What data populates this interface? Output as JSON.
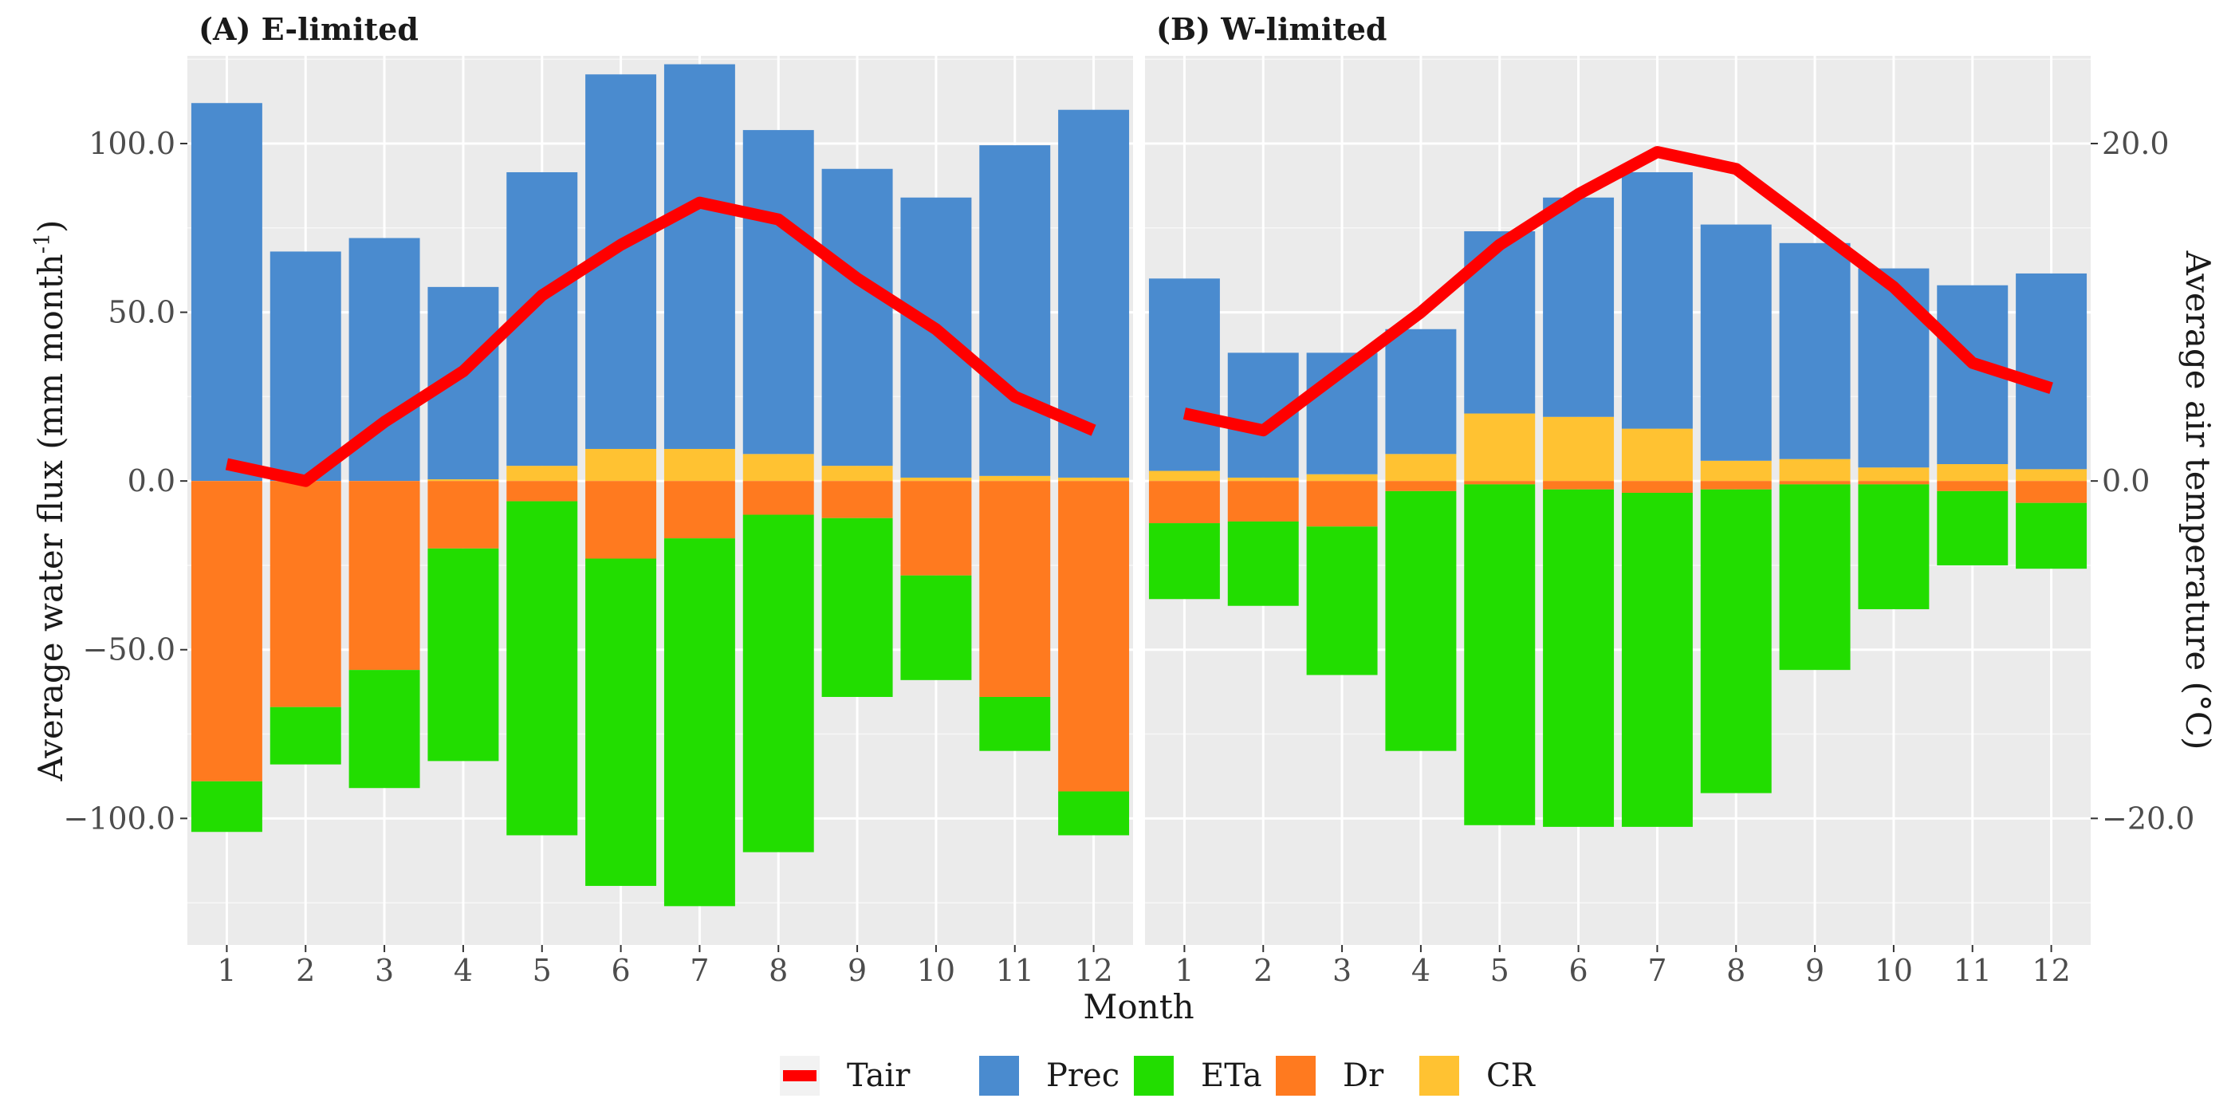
{
  "chart_data": {
    "type": "bar",
    "stacking": "diverging",
    "xlabel": "Month",
    "ylabel": "Average water flux (mm month",
    "ylabel_superscript": "-1",
    "ylabel_suffix": ")",
    "y2label": "Average air temperature (°C)",
    "ylim": [
      -137.5,
      126
    ],
    "yticks": [
      -100,
      -50,
      0,
      50,
      100
    ],
    "ytick_labels": [
      "−100.0",
      "−50.0",
      "0.0",
      "50.0",
      "100.0"
    ],
    "y2_scale": 0.2,
    "y2ticks": [
      -20,
      0,
      20
    ],
    "y2tick_labels": [
      "−20.0",
      "0.0",
      "20.0"
    ],
    "categories": [
      "1",
      "2",
      "3",
      "4",
      "5",
      "6",
      "7",
      "8",
      "9",
      "10",
      "11",
      "12"
    ],
    "colors": {
      "Prec": "#4a8bcf",
      "ETa": "#22dd00",
      "Dr": "#ff7a1f",
      "CR": "#ffc232",
      "Tair": "#ff0000"
    },
    "legend": [
      "Tair",
      "Prec",
      "ETa",
      "Dr",
      "CR"
    ],
    "panels": [
      {
        "title": "(A) E-limited",
        "series": [
          {
            "name": "Prec",
            "values": [
              112,
              68,
              72,
              57,
              87,
              111,
              114,
              96,
              88,
              83,
              98,
              109
            ]
          },
          {
            "name": "CR",
            "values": [
              0,
              0,
              0,
              0.5,
              4.5,
              9.5,
              9.5,
              8,
              4.5,
              1,
              1.5,
              1
            ]
          },
          {
            "name": "Dr",
            "values": [
              -89,
              -67,
              -56,
              -20,
              -6,
              -23,
              -17,
              -10,
              -11,
              -28,
              -64,
              -92
            ]
          },
          {
            "name": "ETa",
            "values": [
              -15,
              -17,
              -35,
              -63,
              -99,
              -97,
              -109,
              -100,
              -53,
              -31,
              -16,
              -13
            ]
          },
          {
            "name": "Tair",
            "values": [
              1,
              0,
              3.5,
              6.5,
              11,
              14,
              16.5,
              15.5,
              12,
              9,
              5,
              3
            ]
          }
        ]
      },
      {
        "title": "(B) W-limited",
        "series": [
          {
            "name": "Prec",
            "values": [
              57,
              37,
              36,
              37,
              54,
              65,
              76,
              70,
              64,
              59,
              53,
              58
            ]
          },
          {
            "name": "CR",
            "values": [
              3,
              1,
              2,
              8,
              20,
              19,
              15.5,
              6,
              6.5,
              4,
              5,
              3.5
            ]
          },
          {
            "name": "Dr",
            "values": [
              -12.5,
              -12,
              -13.5,
              -3,
              -1,
              -2.5,
              -3.5,
              -2.5,
              -1,
              -1,
              -3,
              -6.5
            ]
          },
          {
            "name": "ETa",
            "values": [
              -22.5,
              -25,
              -44,
              -77,
              -101,
              -100,
              -99,
              -90,
              -55,
              -37,
              -22,
              -19.5
            ]
          },
          {
            "name": "Tair",
            "values": [
              4,
              3,
              6.5,
              10,
              14,
              17,
              19.5,
              18.5,
              15,
              11.5,
              7,
              5.5
            ]
          }
        ]
      }
    ]
  }
}
